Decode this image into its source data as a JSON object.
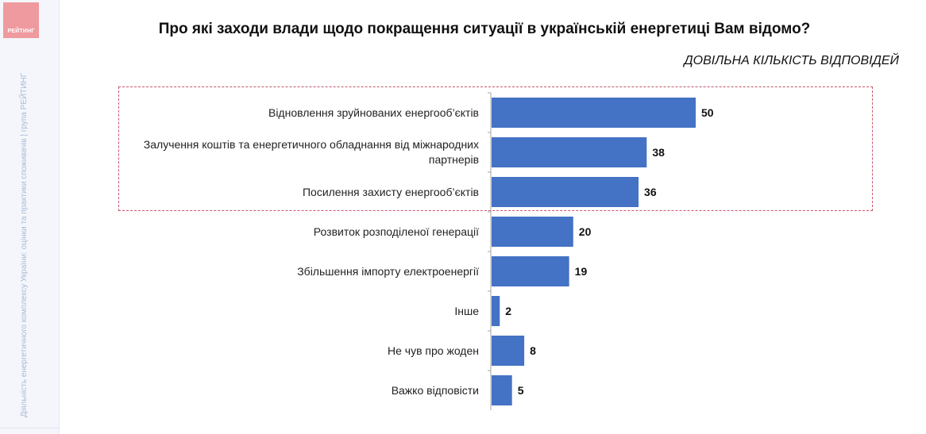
{
  "sidebar": {
    "logo_text": "РЕЙТИНГ",
    "vertical_note": "Діяльність енергетичного комплексу України: оцінки та практики споживачів | група РЕЙТИНГ"
  },
  "colors": {
    "bar": "#4472c4",
    "highlight_border": "#c9566c",
    "logo": "#ef9a9e"
  },
  "chart_data": {
    "type": "bar",
    "orientation": "horizontal",
    "title": "Про які заходи влади щодо покращення ситуації в українській енергетиці Вам відомо?",
    "subtitle": "ДОВІЛЬНА КІЛЬКІСТЬ ВІДПОВІДЕЙ",
    "categories": [
      "Відновлення зруйнованих енергооб’єктів",
      "Залучення коштів та енергетичного обладнання від міжнародних партнерів",
      "Посилення захисту енергооб’єктів",
      "Розвиток розподіленої генерації",
      "Збільшення імпорту електроенергії",
      "Інше",
      "Не чув про жоден",
      "Важко відповісти"
    ],
    "values": [
      50,
      38,
      36,
      20,
      19,
      2,
      8,
      5
    ],
    "highlighted": [
      "Відновлення зруйнованих енергооб’єктів",
      "Залучення коштів та енергетичного обладнання від міжнародних партнерів",
      "Посилення захисту енергооб’єктів"
    ],
    "xlim": [
      0,
      50
    ],
    "xlabel": "",
    "ylabel": "",
    "grid": false,
    "legend": "none"
  }
}
